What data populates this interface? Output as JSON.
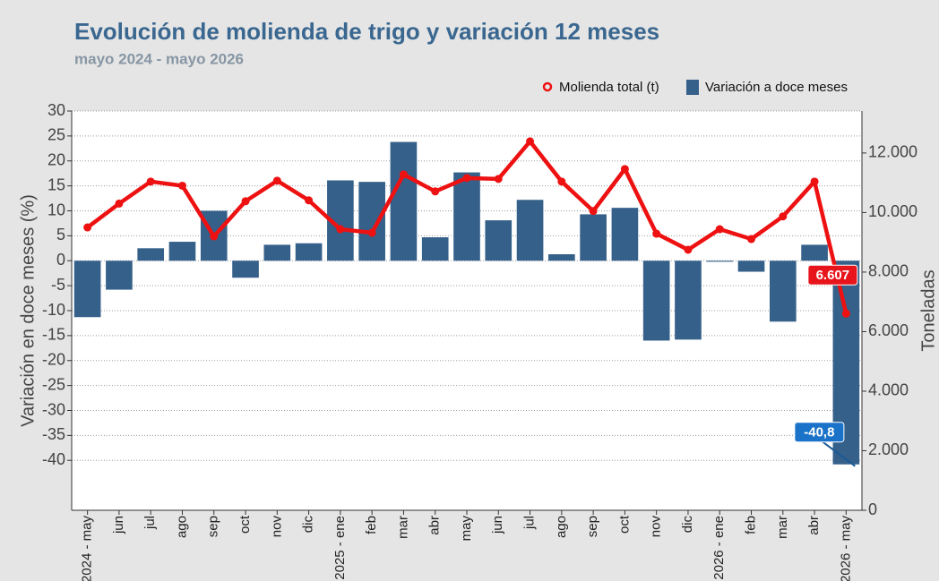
{
  "chart_data": {
    "type": "bar_line",
    "title": "Evolución de molienda de trigo y variación 12 meses",
    "subtitle": "mayo 2024 - mayo 2026",
    "ylabel": "Variación en doce meses (%)",
    "y2label": "Toneladas",
    "categories": [
      "2024 - may",
      "jun",
      "jul",
      "ago",
      "sep",
      "oct",
      "nov",
      "dic",
      "2025 - ene",
      "feb",
      "mar",
      "abr",
      "may",
      "jun",
      "jul",
      "ago",
      "sep",
      "oct",
      "nov",
      "dic",
      "2026 - ene",
      "feb",
      "mar",
      "abr",
      "2026 - may"
    ],
    "series": [
      {
        "name": "Variación a doce meses",
        "type": "bar",
        "color": "#35608a",
        "values": [
          -11.3,
          -5.8,
          2.5,
          3.8,
          10.0,
          -3.4,
          3.2,
          3.5,
          16.1,
          15.8,
          23.8,
          4.7,
          17.7,
          8.1,
          12.2,
          1.3,
          9.3,
          10.6,
          -16.0,
          -15.8,
          -0.2,
          -2.2,
          -12.2,
          3.2,
          -40.8
        ],
        "value_labels": [
          null,
          null,
          null,
          null,
          null,
          null,
          null,
          null,
          null,
          null,
          null,
          null,
          null,
          null,
          null,
          null,
          null,
          null,
          null,
          null,
          null,
          null,
          null,
          null,
          "-40,8"
        ]
      },
      {
        "name": "Molienda total (t)",
        "type": "line",
        "axis": "y2",
        "color": "#ee1111",
        "values": [
          9500,
          10300,
          11040,
          10900,
          9200,
          10380,
          11070,
          10410,
          9440,
          9320,
          11280,
          10710,
          11160,
          11130,
          12390,
          11040,
          10050,
          11460,
          9290,
          8750,
          9440,
          9110,
          9870,
          11040,
          6607
        ],
        "value_labels": [
          null,
          null,
          null,
          null,
          null,
          null,
          null,
          null,
          null,
          null,
          null,
          null,
          null,
          null,
          null,
          null,
          null,
          null,
          null,
          null,
          null,
          null,
          null,
          null,
          "6.607"
        ]
      }
    ],
    "ylim": [
      -50,
      30
    ],
    "yticks": [
      -40,
      -35,
      -30,
      -25,
      -20,
      -15,
      -10,
      -5,
      0,
      5,
      10,
      15,
      20,
      25,
      30
    ],
    "y2lim": [
      0,
      13410
    ],
    "y2ticks": [
      0,
      {
        "value": 2000,
        "label": "2.000"
      },
      {
        "value": 4000,
        "label": "4.000"
      },
      {
        "value": 6000,
        "label": "6.000"
      },
      {
        "value": 8000,
        "label": "8.000"
      },
      {
        "value": 10000,
        "label": "10.000"
      },
      {
        "value": 12000,
        "label": "12.000"
      }
    ],
    "grid": true,
    "legend": "top-right"
  }
}
